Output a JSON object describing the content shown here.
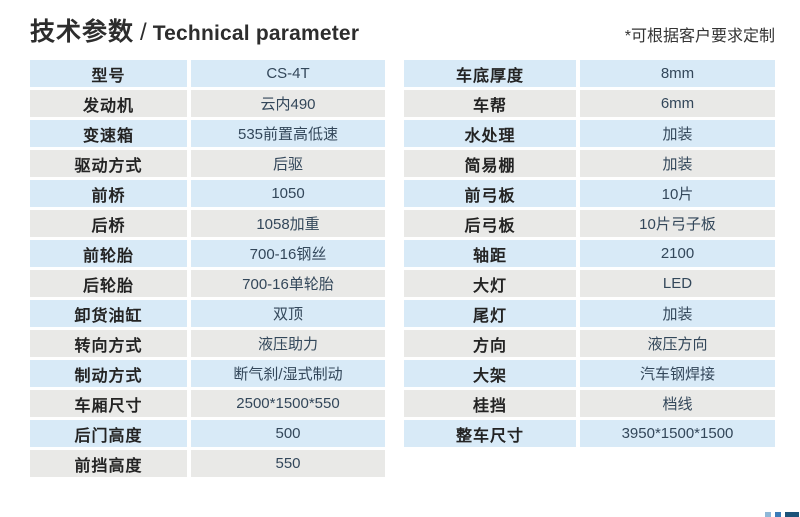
{
  "header": {
    "title_zh": "技术参数",
    "title_sep": "/",
    "title_en": "Technical parameter",
    "note": "*可根据客户要求定制"
  },
  "tables": {
    "left": {
      "rows": [
        {
          "label": "型号",
          "value": "CS-4T"
        },
        {
          "label": "发动机",
          "value": "云内490"
        },
        {
          "label": "变速箱",
          "value": "535前置高低速"
        },
        {
          "label": "驱动方式",
          "value": "后驱"
        },
        {
          "label": "前桥",
          "value": "1050"
        },
        {
          "label": "后桥",
          "value": "1058加重"
        },
        {
          "label": "前轮胎",
          "value": "700-16钢丝"
        },
        {
          "label": "后轮胎",
          "value": "700-16单轮胎"
        },
        {
          "label": "卸货油缸",
          "value": "双顶"
        },
        {
          "label": "转向方式",
          "value": "液压助力"
        },
        {
          "label": "制动方式",
          "value": "断气刹/湿式制动"
        },
        {
          "label": "车厢尺寸",
          "value": "2500*1500*550"
        },
        {
          "label": "后门高度",
          "value": "500"
        },
        {
          "label": "前挡高度",
          "value": "550"
        }
      ]
    },
    "right": {
      "rows": [
        {
          "label": "车底厚度",
          "value": "8mm"
        },
        {
          "label": "车帮",
          "value": "6mm"
        },
        {
          "label": "水处理",
          "value": "加装"
        },
        {
          "label": "简易棚",
          "value": "加装"
        },
        {
          "label": "前弓板",
          "value": "10片"
        },
        {
          "label": "后弓板",
          "value": "10片弓子板"
        },
        {
          "label": "轴距",
          "value": "2100"
        },
        {
          "label": "大灯",
          "value": "LED"
        },
        {
          "label": "尾灯",
          "value": "加装"
        },
        {
          "label": "方向",
          "value": "液压方向"
        },
        {
          "label": "大架",
          "value": "汽车钢焊接"
        },
        {
          "label": "桂挡",
          "value": "档线"
        },
        {
          "label": "整车尺寸",
          "value": "3950*1500*1500"
        }
      ]
    }
  },
  "colors": {
    "row_blue": "#d8eaf7",
    "row_gray": "#e9e9e7",
    "decor_light": "#8fb8d8",
    "decor_mid": "#3a7cb8",
    "decor_dark": "#1b5379"
  }
}
